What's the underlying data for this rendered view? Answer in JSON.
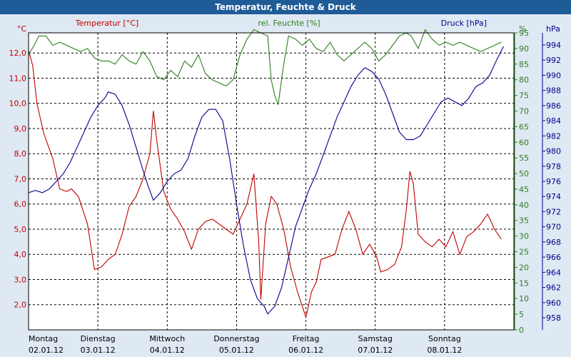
{
  "chart_data": {
    "type": "line",
    "title": "Temperatur, Feuchte & Druck",
    "x_categories": [
      {
        "day": "Montag",
        "date": "02.01.12"
      },
      {
        "day": "Dienstag",
        "date": "03.01.12"
      },
      {
        "day": "Mittwoch",
        "date": "04.01.12"
      },
      {
        "day": "Donnerstag",
        "date": "05.01.12"
      },
      {
        "day": "Freitag",
        "date": "06.01.12"
      },
      {
        "day": "Samstag",
        "date": "07.01.12"
      },
      {
        "day": "Sonntag",
        "date": "08.01.12"
      }
    ],
    "axes": {
      "temperature": {
        "label": "Temperatur [°C]",
        "unit": "°C",
        "min": 1.0,
        "max": 12.8,
        "ticks": [
          "12,0",
          "11,0",
          "10,0",
          "9,0",
          "8,0",
          "7,0",
          "6,0",
          "5,0",
          "4,0",
          "3,0",
          "2,0"
        ],
        "tick_values": [
          12,
          11,
          10,
          9,
          8,
          7,
          6,
          5,
          4,
          3,
          2
        ],
        "color": "#c00000"
      },
      "humidity": {
        "label": "rel. Feuchte [%]",
        "unit": "%",
        "min": 0,
        "max": 95,
        "ticks": [
          "95",
          "90",
          "85",
          "80",
          "75",
          "70",
          "65",
          "60",
          "55",
          "50",
          "45",
          "40",
          "35",
          "30",
          "25",
          "20",
          "15",
          "10",
          "5",
          "0"
        ],
        "tick_values": [
          95,
          90,
          85,
          80,
          75,
          70,
          65,
          60,
          55,
          50,
          45,
          40,
          35,
          30,
          25,
          20,
          15,
          10,
          5,
          0
        ],
        "color": "#2e7d1f"
      },
      "pressure": {
        "label": "Druck [hPa]",
        "unit": "hPa",
        "min": 956.4,
        "max": 995.6,
        "ticks": [
          "994",
          "992",
          "990",
          "988",
          "986",
          "984",
          "982",
          "980",
          "978",
          "976",
          "974",
          "972",
          "970",
          "968",
          "966",
          "964",
          "962",
          "960",
          "958"
        ],
        "tick_values": [
          994,
          992,
          990,
          988,
          986,
          984,
          982,
          980,
          978,
          976,
          974,
          972,
          970,
          968,
          966,
          964,
          962,
          960,
          958
        ],
        "color": "#00008b"
      }
    },
    "grid": true,
    "series": [
      {
        "name": "Temperatur [°C]",
        "axis": "temperature",
        "color": "#c00000",
        "points": [
          [
            0,
            12.1
          ],
          [
            0.06,
            11.5
          ],
          [
            0.12,
            10.0
          ],
          [
            0.22,
            8.8
          ],
          [
            0.35,
            7.8
          ],
          [
            0.45,
            6.6
          ],
          [
            0.55,
            6.5
          ],
          [
            0.62,
            6.6
          ],
          [
            0.72,
            6.3
          ],
          [
            0.85,
            5.2
          ],
          [
            0.95,
            3.4
          ],
          [
            1.05,
            3.5
          ],
          [
            1.15,
            3.8
          ],
          [
            1.25,
            4.0
          ],
          [
            1.35,
            4.8
          ],
          [
            1.45,
            5.9
          ],
          [
            1.55,
            6.3
          ],
          [
            1.65,
            7.0
          ],
          [
            1.75,
            8.0
          ],
          [
            1.8,
            9.7
          ],
          [
            1.85,
            8.5
          ],
          [
            1.95,
            6.5
          ],
          [
            2.05,
            5.8
          ],
          [
            2.15,
            5.4
          ],
          [
            2.25,
            4.9
          ],
          [
            2.35,
            4.2
          ],
          [
            2.45,
            5.0
          ],
          [
            2.55,
            5.3
          ],
          [
            2.65,
            5.4
          ],
          [
            2.75,
            5.2
          ],
          [
            2.85,
            5.0
          ],
          [
            2.95,
            4.8
          ],
          [
            3.05,
            5.4
          ],
          [
            3.15,
            6.0
          ],
          [
            3.25,
            7.2
          ],
          [
            3.32,
            4.5
          ],
          [
            3.35,
            2.2
          ],
          [
            3.42,
            5.2
          ],
          [
            3.5,
            6.3
          ],
          [
            3.58,
            6.0
          ],
          [
            3.68,
            5.0
          ],
          [
            3.78,
            3.5
          ],
          [
            3.88,
            2.5
          ],
          [
            4.0,
            1.5
          ],
          [
            4.08,
            2.5
          ],
          [
            4.15,
            2.9
          ],
          [
            4.22,
            3.8
          ],
          [
            4.32,
            3.9
          ],
          [
            4.42,
            4.0
          ],
          [
            4.52,
            5.0
          ],
          [
            4.62,
            5.7
          ],
          [
            4.72,
            5.0
          ],
          [
            4.82,
            4.0
          ],
          [
            4.92,
            4.4
          ],
          [
            5.02,
            3.9
          ],
          [
            5.08,
            3.3
          ],
          [
            5.18,
            3.4
          ],
          [
            5.28,
            3.6
          ],
          [
            5.38,
            4.3
          ],
          [
            5.45,
            5.8
          ],
          [
            5.5,
            7.3
          ],
          [
            5.55,
            6.8
          ],
          [
            5.62,
            4.8
          ],
          [
            5.72,
            4.5
          ],
          [
            5.82,
            4.3
          ],
          [
            5.92,
            4.6
          ],
          [
            6.02,
            4.3
          ],
          [
            6.12,
            4.9
          ],
          [
            6.22,
            4.0
          ],
          [
            6.32,
            4.7
          ],
          [
            6.42,
            4.9
          ],
          [
            6.52,
            5.2
          ],
          [
            6.62,
            5.6
          ],
          [
            6.72,
            5.0
          ],
          [
            6.82,
            4.6
          ]
        ]
      },
      {
        "name": "rel. Feuchte [%]",
        "axis": "humidity",
        "color": "#2e7d1f",
        "points": [
          [
            0,
            88
          ],
          [
            0.08,
            91
          ],
          [
            0.15,
            94
          ],
          [
            0.25,
            94
          ],
          [
            0.35,
            91
          ],
          [
            0.45,
            92
          ],
          [
            0.55,
            91
          ],
          [
            0.65,
            90
          ],
          [
            0.75,
            89
          ],
          [
            0.85,
            90
          ],
          [
            0.95,
            87
          ],
          [
            1.05,
            86
          ],
          [
            1.15,
            86
          ],
          [
            1.25,
            85
          ],
          [
            1.35,
            88
          ],
          [
            1.45,
            86
          ],
          [
            1.55,
            85
          ],
          [
            1.65,
            89
          ],
          [
            1.75,
            86
          ],
          [
            1.85,
            81
          ],
          [
            1.95,
            80
          ],
          [
            2.05,
            83
          ],
          [
            2.15,
            81
          ],
          [
            2.25,
            86
          ],
          [
            2.35,
            84
          ],
          [
            2.45,
            88
          ],
          [
            2.55,
            82
          ],
          [
            2.65,
            80
          ],
          [
            2.75,
            79
          ],
          [
            2.85,
            78
          ],
          [
            2.95,
            80
          ],
          [
            3.05,
            88
          ],
          [
            3.15,
            93
          ],
          [
            3.25,
            96
          ],
          [
            3.35,
            95
          ],
          [
            3.45,
            94
          ],
          [
            3.5,
            80
          ],
          [
            3.55,
            75
          ],
          [
            3.6,
            72
          ],
          [
            3.68,
            85
          ],
          [
            3.75,
            94
          ],
          [
            3.85,
            93
          ],
          [
            3.95,
            91
          ],
          [
            4.05,
            93
          ],
          [
            4.15,
            90
          ],
          [
            4.25,
            89
          ],
          [
            4.35,
            92
          ],
          [
            4.45,
            88
          ],
          [
            4.55,
            86
          ],
          [
            4.65,
            88
          ],
          [
            4.75,
            90
          ],
          [
            4.85,
            92
          ],
          [
            4.95,
            90
          ],
          [
            5.05,
            86
          ],
          [
            5.15,
            88
          ],
          [
            5.25,
            91
          ],
          [
            5.35,
            94
          ],
          [
            5.45,
            95
          ],
          [
            5.52,
            94
          ],
          [
            5.62,
            90
          ],
          [
            5.72,
            96
          ],
          [
            5.82,
            93
          ],
          [
            5.92,
            91
          ],
          [
            6.02,
            92
          ],
          [
            6.12,
            91
          ],
          [
            6.22,
            92
          ],
          [
            6.32,
            91
          ],
          [
            6.42,
            90
          ],
          [
            6.52,
            89
          ],
          [
            6.62,
            90
          ],
          [
            6.72,
            91
          ],
          [
            6.82,
            92
          ]
        ]
      },
      {
        "name": "Druck [hPa]",
        "axis": "pressure",
        "color": "#00008b",
        "points": [
          [
            0,
            974.5
          ],
          [
            0.1,
            974.8
          ],
          [
            0.2,
            974.5
          ],
          [
            0.3,
            975.0
          ],
          [
            0.4,
            976.0
          ],
          [
            0.5,
            977.0
          ],
          [
            0.6,
            978.5
          ],
          [
            0.7,
            980.5
          ],
          [
            0.8,
            982.5
          ],
          [
            0.9,
            984.5
          ],
          [
            1.0,
            986.0
          ],
          [
            1.1,
            987.0
          ],
          [
            1.15,
            987.8
          ],
          [
            1.25,
            987.5
          ],
          [
            1.35,
            986.0
          ],
          [
            1.45,
            983.5
          ],
          [
            1.55,
            980.5
          ],
          [
            1.65,
            977.5
          ],
          [
            1.72,
            975.5
          ],
          [
            1.8,
            973.5
          ],
          [
            1.9,
            974.5
          ],
          [
            2.0,
            976.0
          ],
          [
            2.1,
            977.0
          ],
          [
            2.2,
            977.5
          ],
          [
            2.3,
            979.0
          ],
          [
            2.4,
            982.0
          ],
          [
            2.5,
            984.5
          ],
          [
            2.6,
            985.5
          ],
          [
            2.7,
            985.5
          ],
          [
            2.8,
            984.0
          ],
          [
            2.9,
            979.0
          ],
          [
            3.0,
            973.0
          ],
          [
            3.1,
            967.5
          ],
          [
            3.2,
            963.0
          ],
          [
            3.3,
            960.5
          ],
          [
            3.4,
            959.5
          ],
          [
            3.45,
            958.5
          ],
          [
            3.55,
            959.5
          ],
          [
            3.65,
            962.0
          ],
          [
            3.75,
            966.0
          ],
          [
            3.85,
            970.0
          ],
          [
            3.95,
            972.5
          ],
          [
            4.05,
            975.0
          ],
          [
            4.15,
            977.0
          ],
          [
            4.25,
            979.5
          ],
          [
            4.35,
            982.0
          ],
          [
            4.45,
            984.5
          ],
          [
            4.55,
            986.5
          ],
          [
            4.65,
            988.5
          ],
          [
            4.75,
            990.0
          ],
          [
            4.85,
            991.0
          ],
          [
            4.95,
            990.5
          ],
          [
            5.05,
            989.5
          ],
          [
            5.15,
            987.5
          ],
          [
            5.25,
            985.0
          ],
          [
            5.35,
            982.5
          ],
          [
            5.45,
            981.5
          ],
          [
            5.55,
            981.5
          ],
          [
            5.65,
            982.0
          ],
          [
            5.75,
            983.5
          ],
          [
            5.85,
            985.0
          ],
          [
            5.95,
            986.5
          ],
          [
            6.05,
            987.0
          ],
          [
            6.15,
            986.5
          ],
          [
            6.25,
            986.0
          ],
          [
            6.35,
            987.0
          ],
          [
            6.45,
            988.5
          ],
          [
            6.55,
            989.0
          ],
          [
            6.65,
            990.0
          ],
          [
            6.75,
            992.0
          ],
          [
            6.85,
            993.8
          ]
        ]
      }
    ]
  }
}
